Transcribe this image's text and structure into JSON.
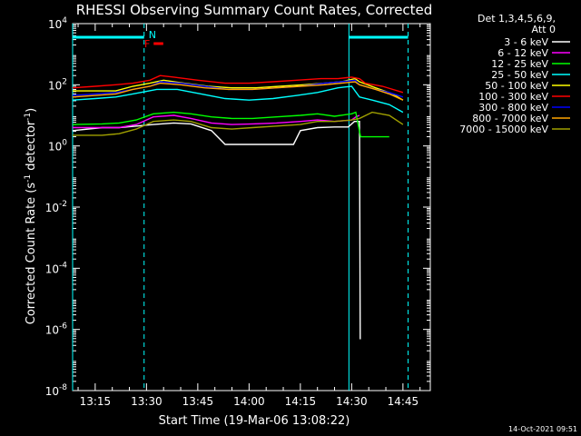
{
  "chart_data": {
    "type": "line",
    "title": "RHESSI Observing Summary Count Rates, Corrected",
    "xlabel": "Start Time (19-Mar-06 13:08:22)",
    "ylabel_pre": "Corrected Count Rate (s",
    "ylabel_sup1": "-1",
    "ylabel_mid": " detector",
    "ylabel_sup2": "-1",
    "ylabel_post": ")",
    "yscale": "log",
    "ylim_exp": [
      -8,
      4
    ],
    "y_tick_exponents": [
      -8,
      -6,
      -4,
      -2,
      0,
      2,
      4
    ],
    "xlim_min": [
      788.4,
      893
    ],
    "x_ticks": [
      {
        "m": 795,
        "label": "13:15"
      },
      {
        "m": 810,
        "label": "13:30"
      },
      {
        "m": 825,
        "label": "13:45"
      },
      {
        "m": 840,
        "label": "14:00"
      },
      {
        "m": 855,
        "label": "14:15"
      },
      {
        "m": 870,
        "label": "14:30"
      },
      {
        "m": 885,
        "label": "14:45"
      }
    ],
    "legend_header": [
      "Det 1,3,4,5,6,9,",
      "Att 0"
    ],
    "legend_position": "right",
    "series": [
      {
        "name": "3 - 6 keV",
        "color": "#ffffff",
        "points": [
          [
            788.4,
            0.5
          ],
          [
            797,
            0.6
          ],
          [
            802,
            0.6
          ],
          [
            807,
            0.65
          ],
          [
            812,
            0.7
          ],
          [
            818,
            0.75
          ],
          [
            823,
            0.72
          ],
          [
            829,
            0.5
          ],
          [
            833,
            0.05
          ],
          [
            838,
            0.05
          ],
          [
            843,
            0.05
          ],
          [
            848,
            0.05
          ],
          [
            853,
            0.05
          ],
          [
            855,
            0.5
          ],
          [
            860,
            0.6
          ],
          [
            865,
            0.62
          ],
          [
            869,
            0.62
          ],
          [
            870.8,
            0.8
          ],
          [
            872.3,
            0.8
          ],
          [
            872.5,
            -6.3
          ],
          [
            872.7,
            -6.3
          ]
        ]
      },
      {
        "name": "6 - 12 keV",
        "color": "#ff00ff",
        "points": [
          [
            788.4,
            0.6
          ],
          [
            797,
            0.6
          ],
          [
            802,
            0.6
          ],
          [
            807,
            0.7
          ],
          [
            812,
            0.95
          ],
          [
            818,
            1.0
          ],
          [
            823,
            0.9
          ],
          [
            829,
            0.75
          ],
          [
            835,
            0.7
          ],
          [
            841,
            0.72
          ],
          [
            848,
            0.75
          ],
          [
            855,
            0.8
          ],
          [
            860,
            0.85
          ],
          [
            865,
            0.8
          ],
          [
            870,
            0.85
          ],
          [
            871.2,
            0.95
          ],
          [
            872.3,
            1.0
          ]
        ]
      },
      {
        "name": "12 - 25 keV",
        "color": "#00ff00",
        "points": [
          [
            788.4,
            0.7
          ],
          [
            797,
            0.72
          ],
          [
            802,
            0.75
          ],
          [
            807,
            0.85
          ],
          [
            812,
            1.05
          ],
          [
            818,
            1.1
          ],
          [
            823,
            1.05
          ],
          [
            829,
            0.95
          ],
          [
            835,
            0.9
          ],
          [
            841,
            0.9
          ],
          [
            848,
            0.95
          ],
          [
            855,
            1.0
          ],
          [
            860,
            1.05
          ],
          [
            865,
            0.97
          ],
          [
            870,
            1.05
          ],
          [
            871.2,
            1.1
          ],
          [
            872.6,
            0.3
          ],
          [
            877,
            0.3
          ],
          [
            881,
            0.3
          ]
        ]
      },
      {
        "name": "25 - 50 keV",
        "color": "#00ffff",
        "points": [
          [
            788.4,
            1.5
          ],
          [
            795,
            1.55
          ],
          [
            801,
            1.6
          ],
          [
            806,
            1.7
          ],
          [
            813,
            1.85
          ],
          [
            819,
            1.85
          ],
          [
            826,
            1.7
          ],
          [
            833,
            1.55
          ],
          [
            840,
            1.5
          ],
          [
            847,
            1.55
          ],
          [
            854,
            1.65
          ],
          [
            860,
            1.75
          ],
          [
            866,
            1.9
          ],
          [
            870,
            1.95
          ],
          [
            872.3,
            1.6
          ],
          [
            876,
            1.5
          ],
          [
            881,
            1.35
          ],
          [
            885,
            1.1
          ]
        ]
      },
      {
        "name": "50 - 100 keV",
        "color": "#ffff00",
        "points": [
          [
            788.4,
            1.8
          ],
          [
            795,
            1.8
          ],
          [
            801,
            1.8
          ],
          [
            806,
            1.95
          ],
          [
            811,
            2.05
          ],
          [
            815,
            2.15
          ],
          [
            821,
            2.05
          ],
          [
            828,
            1.95
          ],
          [
            835,
            1.9
          ],
          [
            842,
            1.9
          ],
          [
            849,
            1.95
          ],
          [
            856,
            2.0
          ],
          [
            862,
            2.05
          ],
          [
            867,
            2.1
          ],
          [
            871,
            2.2
          ],
          [
            872.3,
            2.1
          ],
          [
            877,
            1.9
          ],
          [
            882,
            1.7
          ],
          [
            885,
            1.5
          ]
        ]
      },
      {
        "name": "100 - 300 keV",
        "color": "#ff0000",
        "points": [
          [
            788.4,
            1.9
          ],
          [
            795,
            1.95
          ],
          [
            801,
            2.0
          ],
          [
            806,
            2.05
          ],
          [
            811,
            2.15
          ],
          [
            814,
            2.3
          ],
          [
            818,
            2.25
          ],
          [
            825,
            2.15
          ],
          [
            833,
            2.05
          ],
          [
            840,
            2.05
          ],
          [
            847,
            2.1
          ],
          [
            854,
            2.15
          ],
          [
            861,
            2.2
          ],
          [
            866,
            2.2
          ],
          [
            870,
            2.25
          ],
          [
            872.3,
            2.2
          ],
          [
            874,
            2.05
          ],
          [
            879,
            1.95
          ],
          [
            885,
            1.75
          ]
        ]
      },
      {
        "name": "300 - 800 keV",
        "color": "#0000ff",
        "points": [
          [
            788.4,
            1.65
          ],
          [
            795,
            1.7
          ],
          [
            801,
            1.75
          ],
          [
            806,
            1.85
          ],
          [
            811,
            1.95
          ],
          [
            814,
            2.1
          ],
          [
            820,
            2.05
          ],
          [
            827,
            1.95
          ],
          [
            834,
            1.85
          ],
          [
            841,
            1.85
          ],
          [
            848,
            1.9
          ],
          [
            855,
            1.95
          ],
          [
            862,
            2.05
          ],
          [
            867,
            2.1
          ],
          [
            871,
            2.15
          ],
          [
            872.3,
            2.0
          ],
          [
            877,
            1.85
          ],
          [
            881,
            1.75
          ],
          [
            885,
            1.6
          ]
        ]
      },
      {
        "name": "800 - 7000 keV",
        "color": "#ffa500",
        "points": [
          [
            788.4,
            1.6
          ],
          [
            795,
            1.65
          ],
          [
            801,
            1.7
          ],
          [
            806,
            1.85
          ],
          [
            811,
            1.95
          ],
          [
            814,
            2.05
          ],
          [
            820,
            2.0
          ],
          [
            827,
            1.9
          ],
          [
            834,
            1.85
          ],
          [
            841,
            1.85
          ],
          [
            848,
            1.9
          ],
          [
            855,
            1.95
          ],
          [
            862,
            2.0
          ],
          [
            867,
            2.05
          ],
          [
            871,
            2.1
          ],
          [
            872.3,
            2.0
          ],
          [
            877,
            1.85
          ],
          [
            881,
            1.7
          ],
          [
            885,
            1.5
          ]
        ]
      },
      {
        "name": "7000 - 15000 keV",
        "color": "#a0a000",
        "points": [
          [
            788.4,
            0.35
          ],
          [
            797,
            0.35
          ],
          [
            802,
            0.4
          ],
          [
            807,
            0.55
          ],
          [
            812,
            0.8
          ],
          [
            818,
            0.85
          ],
          [
            823,
            0.8
          ],
          [
            829,
            0.6
          ],
          [
            835,
            0.55
          ],
          [
            841,
            0.6
          ],
          [
            848,
            0.65
          ],
          [
            855,
            0.7
          ],
          [
            860,
            0.8
          ],
          [
            865,
            0.8
          ],
          [
            870,
            0.85
          ],
          [
            872.3,
            0.9
          ],
          [
            876,
            1.1
          ],
          [
            881,
            1.0
          ],
          [
            885,
            0.7
          ]
        ]
      }
    ],
    "annotations": {
      "N_label": "N",
      "F_label": "F",
      "night_bars_min": [
        [
          788.4,
          809.3
        ],
        [
          869.2,
          886.5
        ]
      ],
      "flare_bar_min": [
        812.1,
        814.9
      ],
      "vlines_cyan_solid_min": [
        788.4,
        869.2
      ],
      "vlines_cyan_dashed_min": [
        809.3,
        886.5
      ],
      "colors": {
        "night": "#00ffff",
        "flare": "#ff0000"
      }
    }
  },
  "timestamp": "14-Oct-2021 09:51"
}
